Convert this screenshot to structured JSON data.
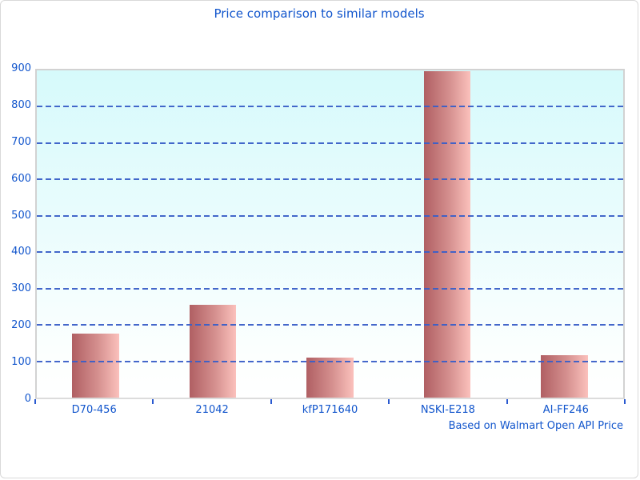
{
  "colors": {
    "title_text": "#1155cc",
    "axis_text": "#1155cc",
    "gridline": "#3a5fc8",
    "tick_mark": "#2a5ad0",
    "plot_background_top": "#d6fafb",
    "plot_background_bottom": "#ffffff",
    "plot_border": "#d2d2d2",
    "bar_gradient_left": "#b05f63",
    "bar_gradient_right": "#fbc1bc"
  },
  "chart_data": {
    "type": "bar",
    "title": "Price comparison to similar models",
    "categories": [
      "D70-456",
      "21042",
      "kfP171640",
      "NSKI-E218",
      "AI-FF246"
    ],
    "values": [
      177,
      255,
      110,
      897,
      117
    ],
    "xlabel": "",
    "ylabel": "",
    "ylim": [
      0,
      900
    ],
    "yticks": [
      0,
      100,
      200,
      300,
      400,
      500,
      600,
      700,
      800,
      900
    ],
    "grid": "horizontal dashed gridlines at every 100, none at top (900)",
    "legend": "none",
    "bar_style": "horizontal red-to-pink gradient",
    "note": "Based on Walmart Open API Price"
  }
}
